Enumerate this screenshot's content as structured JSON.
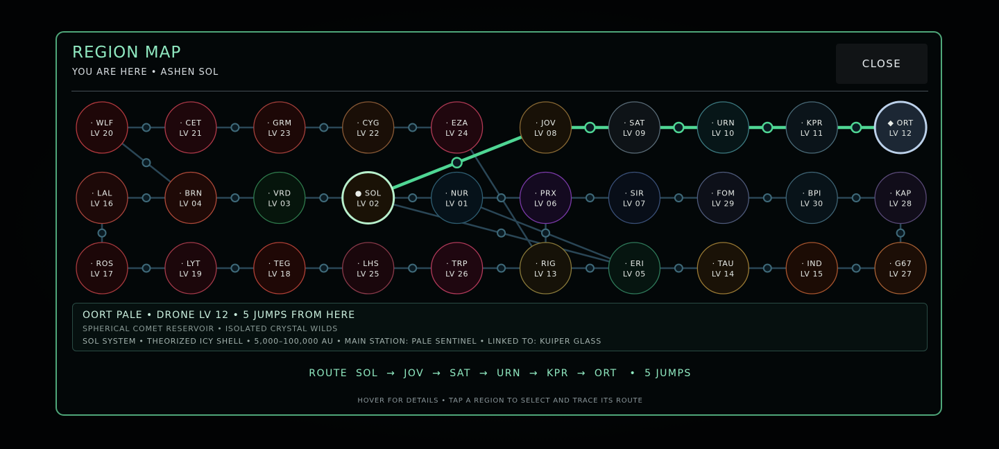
{
  "header": {
    "title": "REGION MAP",
    "subtitle": "YOU ARE HERE  •  ASHEN SOL",
    "close_label": "CLOSE"
  },
  "map": {
    "nodes": [
      {
        "id": "WLF",
        "line1": "· WLF",
        "line2": "LV 20",
        "row": 0,
        "col": 0,
        "color": "#b53a3f",
        "fill": "#1e0708"
      },
      {
        "id": "CET",
        "line1": "· CET",
        "line2": "LV 21",
        "row": 0,
        "col": 1,
        "color": "#b13a4a",
        "fill": "#1e070b"
      },
      {
        "id": "GRM",
        "line1": "· GRM",
        "line2": "LV 23",
        "row": 0,
        "col": 2,
        "color": "#a5403b",
        "fill": "#1d0807"
      },
      {
        "id": "CYG",
        "line1": "· CYG",
        "line2": "LV 22",
        "row": 0,
        "col": 3,
        "color": "#8a5a36",
        "fill": "#1a0f07"
      },
      {
        "id": "EZA",
        "line1": "· EZA",
        "line2": "LV 24",
        "row": 0,
        "col": 4,
        "color": "#b23a55",
        "fill": "#20070e"
      },
      {
        "id": "JOV",
        "line1": "· JOV",
        "line2": "LV 08",
        "row": 0,
        "col": 5,
        "color": "#8a6a34",
        "fill": "#181107"
      },
      {
        "id": "SAT",
        "line1": "· SAT",
        "line2": "LV 09",
        "row": 0,
        "col": 6,
        "color": "#5a6c78",
        "fill": "#0e1317"
      },
      {
        "id": "URN",
        "line1": "· URN",
        "line2": "LV 10",
        "row": 0,
        "col": 7,
        "color": "#3d7b82",
        "fill": "#071618"
      },
      {
        "id": "KPR",
        "line1": "· KPR",
        "line2": "LV 11",
        "row": 0,
        "col": 8,
        "color": "#4b6c7a",
        "fill": "#0b141a"
      },
      {
        "id": "ORT",
        "line1": "◆ ORT",
        "line2": "LV 12",
        "row": 0,
        "col": 9,
        "color": "#bcd1ea",
        "fill": "#1c2734",
        "selected": true
      },
      {
        "id": "LAL",
        "line1": "· LAL",
        "line2": "LV 16",
        "row": 1,
        "col": 0,
        "color": "#a8443c",
        "fill": "#1d0908"
      },
      {
        "id": "BRN",
        "line1": "· BRN",
        "line2": "LV 04",
        "row": 1,
        "col": 1,
        "color": "#b04a3a",
        "fill": "#1f0a07"
      },
      {
        "id": "VRD",
        "line1": "· VRD",
        "line2": "LV 03",
        "row": 1,
        "col": 2,
        "color": "#2f7a4c",
        "fill": "#06150c"
      },
      {
        "id": "SOL",
        "line1": "● SOL",
        "line2": "LV 02",
        "row": 1,
        "col": 3,
        "color": "#b8f0cc",
        "fill": "#1a1206",
        "current": true
      },
      {
        "id": "NUR",
        "line1": "· NUR",
        "line2": "LV 01",
        "row": 1,
        "col": 4,
        "color": "#2f5e72",
        "fill": "#06121a"
      },
      {
        "id": "PRX",
        "line1": "· PRX",
        "line2": "LV 06",
        "row": 1,
        "col": 5,
        "color": "#7a3aa8",
        "fill": "#140a20"
      },
      {
        "id": "SIR",
        "line1": "· SIR",
        "line2": "LV 07",
        "row": 1,
        "col": 6,
        "color": "#3a5078",
        "fill": "#080e18"
      },
      {
        "id": "FOM",
        "line1": "· FOM",
        "line2": "LV 29",
        "row": 1,
        "col": 7,
        "color": "#4e5a7a",
        "fill": "#0d1019"
      },
      {
        "id": "BPI",
        "line1": "· BPI",
        "line2": "LV 30",
        "row": 1,
        "col": 8,
        "color": "#3f6475",
        "fill": "#081319"
      },
      {
        "id": "KAP",
        "line1": "· KAP",
        "line2": "LV 28",
        "row": 1,
        "col": 9,
        "color": "#5a4a78",
        "fill": "#110d1a"
      },
      {
        "id": "ROS",
        "line1": "· ROS",
        "line2": "LV 17",
        "row": 2,
        "col": 0,
        "color": "#a83a3e",
        "fill": "#1c0708"
      },
      {
        "id": "LYT",
        "line1": "· LYT",
        "line2": "LV 19",
        "row": 2,
        "col": 1,
        "color": "#a53a4a",
        "fill": "#1c070b"
      },
      {
        "id": "TEG",
        "line1": "· TEG",
        "line2": "LV 18",
        "row": 2,
        "col": 2,
        "color": "#b04036",
        "fill": "#1f0806"
      },
      {
        "id": "LHS",
        "line1": "· LHS",
        "line2": "LV 25",
        "row": 2,
        "col": 3,
        "color": "#8a3a4a",
        "fill": "#1a070c"
      },
      {
        "id": "TRP",
        "line1": "· TRP",
        "line2": "LV 26",
        "row": 2,
        "col": 4,
        "color": "#b23a5a",
        "fill": "#1f0710"
      },
      {
        "id": "RIG",
        "line1": "· RIG",
        "line2": "LV 13",
        "row": 2,
        "col": 5,
        "color": "#8a7a3a",
        "fill": "#161208"
      },
      {
        "id": "ERI",
        "line1": "· ERI",
        "line2": "LV 05",
        "row": 2,
        "col": 6,
        "color": "#2f7a5a",
        "fill": "#061510"
      },
      {
        "id": "TAU",
        "line1": "· TAU",
        "line2": "LV 14",
        "row": 2,
        "col": 7,
        "color": "#9a7a34",
        "fill": "#1a1207"
      },
      {
        "id": "IND",
        "line1": "· IND",
        "line2": "LV 15",
        "row": 2,
        "col": 8,
        "color": "#a8552e",
        "fill": "#1c0c05"
      },
      {
        "id": "G67",
        "line1": "· G67",
        "line2": "LV 27",
        "row": 2,
        "col": 9,
        "color": "#a86034",
        "fill": "#1c0e06"
      }
    ],
    "links": [
      [
        "WLF",
        "CET"
      ],
      [
        "CET",
        "GRM"
      ],
      [
        "GRM",
        "CYG"
      ],
      [
        "CYG",
        "EZA"
      ],
      [
        "LAL",
        "BRN"
      ],
      [
        "BRN",
        "VRD"
      ],
      [
        "VRD",
        "SOL"
      ],
      [
        "SOL",
        "NUR"
      ],
      [
        "NUR",
        "PRX"
      ],
      [
        "PRX",
        "SIR"
      ],
      [
        "SIR",
        "FOM"
      ],
      [
        "FOM",
        "BPI"
      ],
      [
        "BPI",
        "KAP"
      ],
      [
        "ROS",
        "LYT"
      ],
      [
        "LYT",
        "TEG"
      ],
      [
        "TEG",
        "LHS"
      ],
      [
        "LHS",
        "TRP"
      ],
      [
        "TRP",
        "RIG"
      ],
      [
        "RIG",
        "ERI"
      ],
      [
        "ERI",
        "TAU"
      ],
      [
        "TAU",
        "IND"
      ],
      [
        "IND",
        "G67"
      ],
      [
        "LAL",
        "ROS"
      ],
      [
        "KAP",
        "G67"
      ],
      [
        "PRX",
        "RIG"
      ],
      [
        "WLF",
        "BRN"
      ],
      [
        "EZA",
        "RIG"
      ],
      [
        "SOL",
        "ERI"
      ],
      [
        "NUR",
        "ERI"
      ]
    ],
    "route": [
      "SOL",
      "JOV",
      "SAT",
      "URN",
      "KPR",
      "ORT"
    ],
    "colors": {
      "link": "#2a4656",
      "route": "#4fd694",
      "connector_fill": "#0a1a22"
    }
  },
  "details": {
    "headline": "OORT PALE  •  DRONE LV 12  •  5 JUMPS FROM HERE",
    "description": "SPHERICAL COMET RESERVOIR  •  ISOLATED CRYSTAL WILDS",
    "facts": "SOL SYSTEM  •  THEORIZED ICY SHELL  •  5,000–100,000 AU  •  MAIN STATION: PALE SENTINEL  •  LINKED TO: KUIPER GLASS"
  },
  "route_text": "ROUTE  SOL  →  JOV  →  SAT  →  URN  →  KPR  →  ORT   •  5 JUMPS",
  "hint": "HOVER FOR DETAILS  •  TAP A REGION TO SELECT AND TRACE ITS ROUTE"
}
